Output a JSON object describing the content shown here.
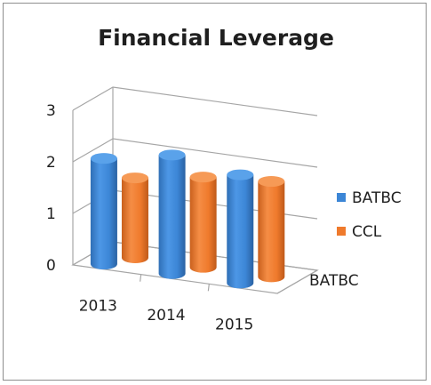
{
  "chart_data": {
    "type": "bar",
    "style": "3d-cylinder",
    "title": "Financial Leverage",
    "categories": [
      "2013",
      "2014",
      "2015"
    ],
    "series": [
      {
        "name": "BATBC",
        "color": "#3c86d6",
        "values": [
          2.05,
          2.3,
          2.1
        ]
      },
      {
        "name": "CCL",
        "color": "#ef7a2c",
        "values": [
          1.55,
          1.75,
          1.85
        ]
      }
    ],
    "depth_label": "BATBC",
    "ylim": [
      0,
      3
    ],
    "yticks": [
      "0",
      "1",
      "2",
      "3"
    ],
    "grid": true,
    "legend": "right"
  }
}
